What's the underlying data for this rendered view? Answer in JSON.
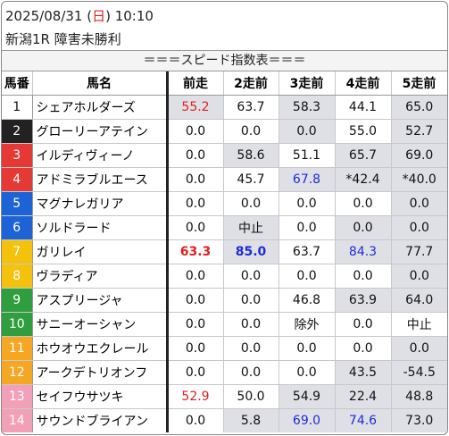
{
  "header": {
    "date_prefix": "2025/08/31 (",
    "weekday": "日",
    "date_suffix": ") 10:10",
    "race": "新潟1R 障害未勝利"
  },
  "banner": "＝＝＝スピード指数表＝＝＝",
  "columns": [
    "馬番",
    "馬名",
    "前走",
    "2走前",
    "3走前",
    "4走前",
    "5走前"
  ],
  "frame_colors": {
    "1": "#ffffff",
    "2": "#222222",
    "3": "#e53935",
    "4": "#1e63d6",
    "5": "#f4c20d",
    "6": "#2e9e3f",
    "7": "#f5a623",
    "8": "#f2a0b8"
  },
  "rows": [
    {
      "num": "1",
      "frame": 1,
      "name": "シェアホルダーズ",
      "vals": [
        "55.2",
        "63.7",
        "58.3",
        "44.1",
        "65.0"
      ],
      "styles": [
        "red",
        "",
        "",
        "",
        ""
      ]
    },
    {
      "num": "2",
      "frame": 2,
      "name": "グローリーアテイン",
      "vals": [
        "0.0",
        "0.0",
        "0.0",
        "55.0",
        "52.7"
      ],
      "styles": [
        "",
        "",
        "",
        "",
        ""
      ]
    },
    {
      "num": "3",
      "frame": 3,
      "name": "イルディヴィーノ",
      "vals": [
        "0.0",
        "58.6",
        "51.1",
        "65.7",
        "69.0"
      ],
      "styles": [
        "",
        "",
        "",
        "",
        ""
      ]
    },
    {
      "num": "4",
      "frame": 3,
      "name": "アドミラブルエース",
      "vals": [
        "0.0",
        "45.7",
        "67.8",
        "*42.4",
        "*40.0"
      ],
      "styles": [
        "",
        "",
        "blue",
        "",
        ""
      ]
    },
    {
      "num": "5",
      "frame": 4,
      "name": "マグナレガリア",
      "vals": [
        "0.0",
        "0.0",
        "0.0",
        "0.0",
        "0.0"
      ],
      "styles": [
        "",
        "",
        "",
        "",
        ""
      ]
    },
    {
      "num": "6",
      "frame": 4,
      "name": "ソルドラード",
      "vals": [
        "0.0",
        "中止",
        "0.0",
        "0.0",
        "0.0"
      ],
      "styles": [
        "",
        "",
        "",
        "",
        ""
      ]
    },
    {
      "num": "7",
      "frame": 5,
      "name": "ガリレイ",
      "vals": [
        "63.3",
        "85.0",
        "63.7",
        "84.3",
        "77.7"
      ],
      "styles": [
        "red bold",
        "blue bold",
        "",
        "blue",
        ""
      ]
    },
    {
      "num": "8",
      "frame": 5,
      "name": "ヴラディア",
      "vals": [
        "0.0",
        "0.0",
        "0.0",
        "0.0",
        "0.0"
      ],
      "styles": [
        "",
        "",
        "",
        "",
        ""
      ]
    },
    {
      "num": "9",
      "frame": 6,
      "name": "アスプリージャ",
      "vals": [
        "0.0",
        "0.0",
        "46.8",
        "63.9",
        "64.0"
      ],
      "styles": [
        "",
        "",
        "",
        "",
        ""
      ]
    },
    {
      "num": "10",
      "frame": 6,
      "name": "サニーオーシャン",
      "vals": [
        "0.0",
        "0.0",
        "除外",
        "0.0",
        "中止"
      ],
      "styles": [
        "",
        "",
        "",
        "",
        ""
      ]
    },
    {
      "num": "11",
      "frame": 7,
      "name": "ホウオウエクレール",
      "vals": [
        "0.0",
        "0.0",
        "0.0",
        "0.0",
        "0.0"
      ],
      "styles": [
        "",
        "",
        "",
        "",
        ""
      ]
    },
    {
      "num": "12",
      "frame": 7,
      "name": "アークデトリオンフ",
      "vals": [
        "0.0",
        "0.0",
        "0.0",
        "43.5",
        "-54.5"
      ],
      "styles": [
        "",
        "",
        "",
        "",
        ""
      ]
    },
    {
      "num": "13",
      "frame": 8,
      "name": "セイフウサツキ",
      "vals": [
        "52.9",
        "50.0",
        "54.9",
        "22.4",
        "48.8"
      ],
      "styles": [
        "red",
        "",
        "",
        "",
        ""
      ]
    },
    {
      "num": "14",
      "frame": 8,
      "name": "サウンドブライアン",
      "vals": [
        "0.0",
        "5.8",
        "69.0",
        "74.6",
        "73.0"
      ],
      "styles": [
        "",
        "",
        "blue",
        "blue",
        ""
      ]
    }
  ],
  "shading": [
    [
      "g",
      "w",
      "g",
      "w",
      "g"
    ],
    [
      "w",
      "w",
      "g",
      "w",
      "g"
    ],
    [
      "w",
      "g",
      "w",
      "g",
      "g"
    ],
    [
      "w",
      "w",
      "g",
      "g",
      "g"
    ],
    [
      "w",
      "w",
      "w",
      "w",
      "g"
    ],
    [
      "w",
      "g",
      "w",
      "g",
      "g"
    ],
    [
      "w",
      "g",
      "w",
      "g",
      "g"
    ],
    [
      "w",
      "w",
      "w",
      "w",
      "g"
    ],
    [
      "w",
      "w",
      "w",
      "g",
      "g"
    ],
    [
      "w",
      "w",
      "w",
      "w",
      "w"
    ],
    [
      "w",
      "w",
      "w",
      "w",
      "g"
    ],
    [
      "w",
      "w",
      "w",
      "g",
      "g"
    ],
    [
      "w",
      "w",
      "g",
      "g",
      "g"
    ],
    [
      "w",
      "g",
      "g",
      "g",
      "g"
    ]
  ]
}
